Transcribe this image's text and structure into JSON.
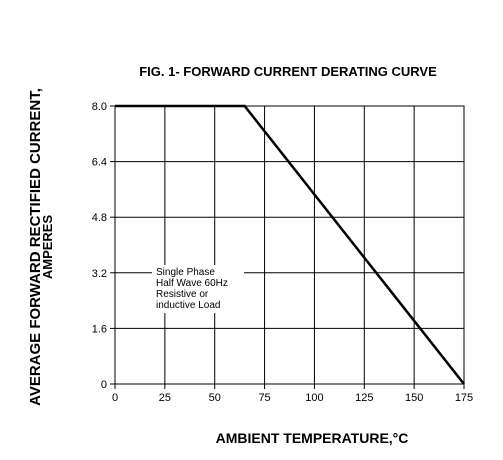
{
  "chart_data": {
    "type": "line",
    "title": "FIG. 1- FORWARD CURRENT DERATING CURVE",
    "xlabel": "AMBIENT TEMPERATURE,°C",
    "ylabel_line1": "AVERAGE FORWARD RECTIFIED CURRENT,",
    "ylabel_line2": "AMPERES",
    "xlim": [
      0,
      175
    ],
    "ylim": [
      0,
      8.0
    ],
    "x_ticks": [
      "0",
      "25",
      "50",
      "75",
      "100",
      "125",
      "150",
      "175"
    ],
    "y_ticks": [
      "0",
      "1.6",
      "3.2",
      "4.8",
      "6.4",
      "8.0"
    ],
    "grid": true,
    "series": [
      {
        "x": [
          0,
          65,
          175
        ],
        "y": [
          8.0,
          8.0,
          0
        ]
      }
    ],
    "annotation": {
      "lines": [
        "Single Phase",
        "Half Wave 60Hz",
        "Resistive or",
        "inductive Load"
      ]
    }
  }
}
